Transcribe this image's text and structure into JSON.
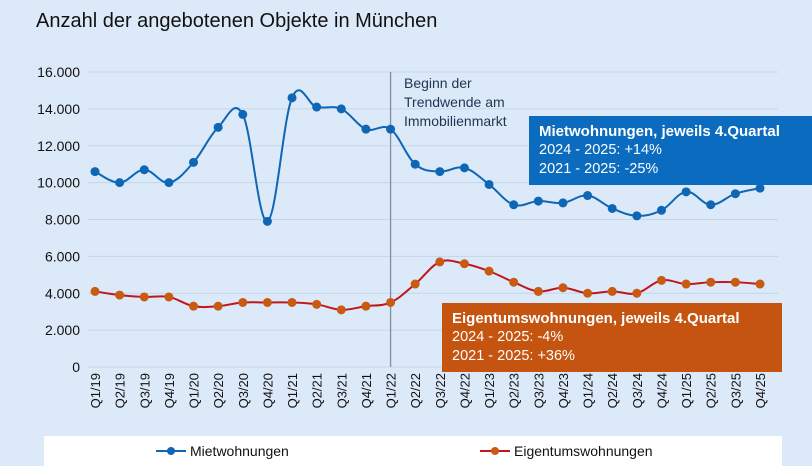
{
  "chart_data": {
    "type": "line",
    "title": "Anzahl der angebotenen Objekte in München",
    "categories": [
      "Q1/19",
      "Q2/19",
      "Q3/19",
      "Q4/19",
      "Q1/20",
      "Q2/20",
      "Q3/20",
      "Q4/20",
      "Q1/21",
      "Q2/21",
      "Q3/21",
      "Q4/21",
      "Q1/22",
      "Q2/22",
      "Q3/22",
      "Q4/22",
      "Q1/23",
      "Q2/23",
      "Q3/23",
      "Q4/23",
      "Q1/24",
      "Q2/24",
      "Q3/24",
      "Q4/24",
      "Q1/25",
      "Q2/25",
      "Q3/25",
      "Q4/25"
    ],
    "series": [
      {
        "name": "Mietwohnungen",
        "color": "#0f66b5",
        "values": [
          10600,
          10000,
          10700,
          10000,
          11100,
          13000,
          13700,
          7900,
          14600,
          14100,
          14000,
          12900,
          12900,
          11000,
          10600,
          10800,
          9900,
          8800,
          9000,
          8900,
          9300,
          8600,
          8200,
          8500,
          9500,
          8800,
          9400,
          9700
        ]
      },
      {
        "name": "Eigentumswohnungen",
        "color": "#c85a12",
        "line_color": "#c0161c",
        "values": [
          4100,
          3900,
          3800,
          3800,
          3300,
          3300,
          3500,
          3500,
          3500,
          3400,
          3100,
          3300,
          3500,
          4500,
          5700,
          5600,
          5200,
          4600,
          4100,
          4300,
          4000,
          4100,
          4000,
          4700,
          4500,
          4600,
          4600,
          4500
        ]
      }
    ],
    "ylim": [
      0,
      16000
    ],
    "yticks": [
      "0",
      "2.000",
      "4.000",
      "6.000",
      "8.000",
      "10.000",
      "12.000",
      "14.000",
      "16.000"
    ],
    "grid": true,
    "legend_position": "bottom",
    "marker_line_at": "Q1/22",
    "annotation": [
      "Beginn der",
      "Trendwende am",
      "Immobilienmarkt"
    ],
    "boxes": {
      "miet": {
        "title": "Mietwohnungen, jeweils 4.Quartal",
        "line1": "2024 - 2025: +14%",
        "line2": "2021 - 2025: -25%",
        "color": "#0a6bbf"
      },
      "eigentum": {
        "title": "Eigentumswohnungen, jeweils 4.Quartal",
        "line1": "2024 - 2025: -4%",
        "line2": "2021 - 2025: +36%",
        "color": "#c4540f"
      }
    }
  }
}
